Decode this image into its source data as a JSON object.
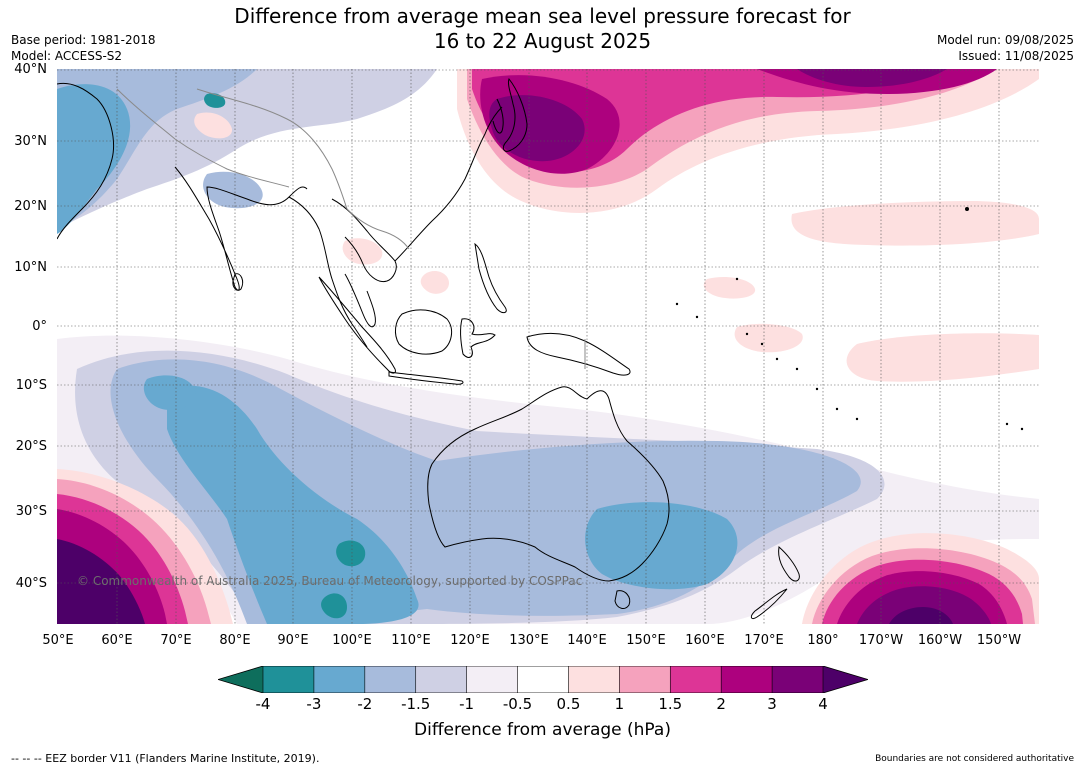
{
  "header": {
    "title_line1": "Difference from average mean sea level pressure forecast for",
    "title_line2": "16 to 22 August 2025",
    "base_period": "Base period: 1981-2018",
    "model": "Model: ACCESS-S2",
    "model_run": "Model run: 09/08/2025",
    "issued": "Issued: 11/08/2025"
  },
  "map": {
    "lat_labels": [
      "40°N",
      "30°N",
      "20°N",
      "10°N",
      "0°",
      "10°S",
      "20°S",
      "30°S",
      "40°S"
    ],
    "lon_labels": [
      "50°E",
      "60°E",
      "70°E",
      "80°E",
      "90°E",
      "100°E",
      "110°E",
      "120°E",
      "130°E",
      "140°E",
      "150°E",
      "160°E",
      "170°E",
      "180°",
      "170°W",
      "160°W",
      "150°W"
    ],
    "copyright": "© Commonwealth of Australia 2025, Bureau of Meteorology, supported by COSPPac"
  },
  "colorbar": {
    "ticks": [
      "-4",
      "-3",
      "-2",
      "-1.5",
      "-1",
      "-0.5",
      "0.5",
      "1",
      "1.5",
      "2",
      "3",
      "4"
    ],
    "colors": [
      "#0e6e5c",
      "#1f9199",
      "#67a9d0",
      "#a7bbdc",
      "#cfd0e4",
      "#f3eef5",
      "#ffffff",
      "#fde0e0",
      "#f5a2bd",
      "#dd3596",
      "#ad017e",
      "#7a0177",
      "#4d0068"
    ],
    "title": "Difference from average (hPa)"
  },
  "footer": {
    "eez": "--  --  -- EEZ border V11 (Flanders Marine Institute, 2019).",
    "disclaimer": "Boundaries are not considered authoritative"
  }
}
